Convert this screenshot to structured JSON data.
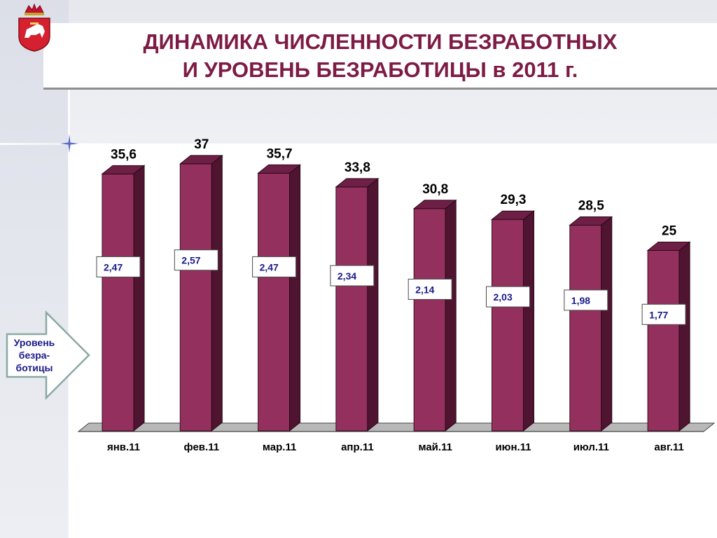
{
  "title": {
    "line1": "ДИНАМИКА ЧИСЛЕННОСТИ БЕЗРАБОТНЫХ",
    "line2": "И УРОВЕНЬ БЕЗРАБОТИЦЫ в 2011 г."
  },
  "arrow": {
    "line1": "Уровень",
    "line2": "безра-",
    "line3": "ботицы"
  },
  "colors": {
    "title": "#7d1b45",
    "bar_front": "#94305d",
    "bar_side": "#4e1430",
    "bar_top": "#6e1f45",
    "rate_text": "#1a1a8c",
    "arrow_fill": "#ffffff",
    "arrow_stroke": "#8aa9a3"
  },
  "chart_data": {
    "type": "bar",
    "title": "ДИНАМИКА ЧИСЛЕННОСТИ БЕЗРАБОТНЫХ И УРОВЕНЬ БЕЗРАБОТИЦЫ в 2011 г.",
    "categories": [
      "янв.11",
      "фев.11",
      "мар.11",
      "апр.11",
      "май.11",
      "июн.11",
      "июл.11",
      "авг.11"
    ],
    "value_labels": [
      "35,6",
      "37",
      "35,7",
      "33,8",
      "30,8",
      "29,3",
      "28,5",
      "25"
    ],
    "values": [
      35.6,
      37,
      35.7,
      33.8,
      30.8,
      29.3,
      28.5,
      25
    ],
    "rate_labels": [
      "2,47",
      "2,57",
      "2,47",
      "2,34",
      "2,14",
      "2,03",
      "1,98",
      "1,77"
    ],
    "rates": [
      2.47,
      2.57,
      2.47,
      2.34,
      2.14,
      2.03,
      1.98,
      1.77
    ],
    "ylim": [
      0,
      40
    ],
    "grid": false,
    "legend": "none"
  }
}
